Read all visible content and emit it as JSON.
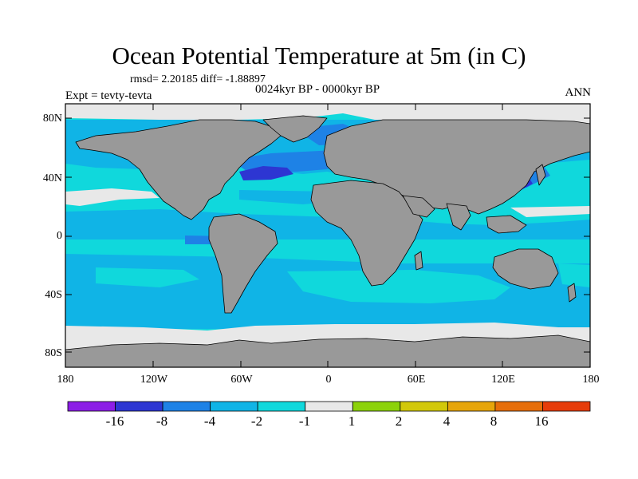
{
  "title": "Ocean Potential Temperature at 5m (in C)",
  "stats_line": "rmsd= 2.20185 diff= -1.88897",
  "experiment_line": "Expt = tevty-tevta",
  "period_line": "0024kyr BP - 0000kyr BP",
  "season": "ANN",
  "lat_labels": [
    "80N",
    "40N",
    "0",
    "40S",
    "80S"
  ],
  "lon_labels": [
    "180",
    "120W",
    "60W",
    "0",
    "60E",
    "120E",
    "180"
  ],
  "colors": {
    "land": "#999999",
    "ocean_main": "#10d8dc",
    "ocean_cool": "#10b4e6",
    "ocean_cold": "#1e82e6",
    "ocean_coldest": "#2d36d2",
    "sea_ice_neutral": "#e8e8e8"
  },
  "colorbar": {
    "bins": [
      {
        "color": "#8c1ee6"
      },
      {
        "color": "#2d36d2"
      },
      {
        "color": "#1e82e6"
      },
      {
        "color": "#10b4e6"
      },
      {
        "color": "#10d8dc"
      },
      {
        "color": "#e8e8e8"
      },
      {
        "color": "#8cd20a"
      },
      {
        "color": "#d2c80a"
      },
      {
        "color": "#e6a50a"
      },
      {
        "color": "#e66e0a"
      },
      {
        "color": "#e63c0a"
      }
    ],
    "labels": [
      "-16",
      "-8",
      "-4",
      "-2",
      "-1",
      "1",
      "2",
      "4",
      "8",
      "16"
    ]
  }
}
